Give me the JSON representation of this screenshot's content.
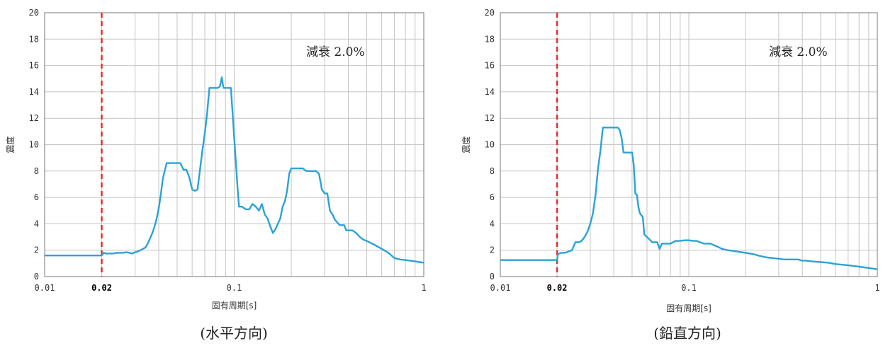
{
  "chart_data": [
    {
      "type": "line",
      "caption": "(水平方向)",
      "xlabel": "固有周期[s]",
      "ylabel": "震度",
      "annotation": "減衰 2.0%",
      "x_scale": "log",
      "xlim": [
        0.01,
        1
      ],
      "ylim": [
        0,
        20
      ],
      "x_ticks": [
        {
          "value": 0.01,
          "label": "0.01"
        },
        {
          "value": 0.02,
          "label": "0.02"
        },
        {
          "value": 0.1,
          "label": "0.1"
        },
        {
          "value": 1,
          "label": "1"
        }
      ],
      "y_ticks": [
        0,
        2,
        4,
        6,
        8,
        10,
        12,
        14,
        16,
        18,
        20
      ],
      "grid": true,
      "reference_line": {
        "x": 0.02,
        "color": "#e03030",
        "style": "dashed"
      },
      "series": [
        {
          "color": "#2aa3d8",
          "x": [
            0.01,
            0.012,
            0.015,
            0.018,
            0.02,
            0.0205,
            0.021,
            0.022,
            0.023,
            0.024,
            0.025,
            0.026,
            0.027,
            0.028,
            0.029,
            0.03,
            0.031,
            0.032,
            0.033,
            0.034,
            0.035,
            0.036,
            0.037,
            0.038,
            0.039,
            0.04,
            0.041,
            0.042,
            0.044,
            0.046,
            0.048,
            0.05,
            0.052,
            0.054,
            0.056,
            0.058,
            0.06,
            0.062,
            0.064,
            0.066,
            0.068,
            0.07,
            0.072,
            0.074,
            0.076,
            0.078,
            0.08,
            0.082,
            0.084,
            0.086,
            0.087,
            0.088,
            0.09,
            0.092,
            0.094,
            0.096,
            0.098,
            0.1,
            0.102,
            0.104,
            0.106,
            0.108,
            0.11,
            0.115,
            0.12,
            0.125,
            0.13,
            0.135,
            0.14,
            0.145,
            0.15,
            0.155,
            0.16,
            0.165,
            0.17,
            0.175,
            0.18,
            0.185,
            0.19,
            0.195,
            0.2,
            0.205,
            0.21,
            0.215,
            0.22,
            0.23,
            0.24,
            0.25,
            0.26,
            0.27,
            0.28,
            0.29,
            0.3,
            0.31,
            0.32,
            0.33,
            0.34,
            0.35,
            0.36,
            0.37,
            0.38,
            0.39,
            0.4,
            0.42,
            0.44,
            0.46,
            0.48,
            0.5,
            0.55,
            0.6,
            0.65,
            0.7,
            0.75,
            0.8,
            0.85,
            0.9,
            0.95,
            1.0
          ],
          "y": [
            1.6,
            1.6,
            1.6,
            1.6,
            1.6,
            1.8,
            1.75,
            1.75,
            1.75,
            1.8,
            1.8,
            1.8,
            1.85,
            1.8,
            1.75,
            1.85,
            1.9,
            2.0,
            2.1,
            2.2,
            2.5,
            2.9,
            3.3,
            3.8,
            4.4,
            5.2,
            6.2,
            7.4,
            8.6,
            8.6,
            8.6,
            8.6,
            8.6,
            8.1,
            8.1,
            7.5,
            6.6,
            6.5,
            6.6,
            8.1,
            9.6,
            10.9,
            12.4,
            14.3,
            14.3,
            14.3,
            14.3,
            14.3,
            14.4,
            15.1,
            14.6,
            14.3,
            14.3,
            14.3,
            14.3,
            14.3,
            12.4,
            10.5,
            8.7,
            6.8,
            5.3,
            5.3,
            5.3,
            5.1,
            5.1,
            5.5,
            5.3,
            5.0,
            5.5,
            4.7,
            4.4,
            3.8,
            3.3,
            3.6,
            4.0,
            4.4,
            5.3,
            5.7,
            6.5,
            7.8,
            8.2,
            8.2,
            8.2,
            8.2,
            8.2,
            8.2,
            8.0,
            8.0,
            8.0,
            8.0,
            7.8,
            6.6,
            6.3,
            6.3,
            5.0,
            4.7,
            4.3,
            4.1,
            3.9,
            3.9,
            3.9,
            3.5,
            3.5,
            3.5,
            3.3,
            3.0,
            2.8,
            2.7,
            2.4,
            2.1,
            1.8,
            1.4,
            1.3,
            1.25,
            1.2,
            1.15,
            1.1,
            1.05
          ]
        }
      ]
    },
    {
      "type": "line",
      "caption": "(鉛直方向)",
      "xlabel": "固有周期[s]",
      "ylabel": "震度",
      "annotation": "減衰 2.0%",
      "x_scale": "log",
      "xlim": [
        0.01,
        1
      ],
      "ylim": [
        0,
        20
      ],
      "x_ticks": [
        {
          "value": 0.01,
          "label": "0.01"
        },
        {
          "value": 0.02,
          "label": "0.02"
        },
        {
          "value": 0.1,
          "label": "0.1"
        },
        {
          "value": 1,
          "label": "1"
        }
      ],
      "y_ticks": [
        0,
        2,
        4,
        6,
        8,
        10,
        12,
        14,
        16,
        18,
        20
      ],
      "grid": true,
      "reference_line": {
        "x": 0.02,
        "color": "#e03030",
        "style": "dashed"
      },
      "series": [
        {
          "color": "#2aa3d8",
          "x": [
            0.01,
            0.012,
            0.015,
            0.018,
            0.02,
            0.0202,
            0.021,
            0.022,
            0.023,
            0.024,
            0.025,
            0.026,
            0.027,
            0.028,
            0.029,
            0.03,
            0.031,
            0.032,
            0.033,
            0.034,
            0.035,
            0.036,
            0.038,
            0.04,
            0.042,
            0.043,
            0.044,
            0.045,
            0.046,
            0.048,
            0.05,
            0.051,
            0.052,
            0.053,
            0.054,
            0.055,
            0.057,
            0.058,
            0.06,
            0.062,
            0.064,
            0.066,
            0.068,
            0.07,
            0.072,
            0.074,
            0.076,
            0.078,
            0.08,
            0.085,
            0.09,
            0.095,
            0.1,
            0.105,
            0.11,
            0.12,
            0.13,
            0.14,
            0.15,
            0.16,
            0.17,
            0.18,
            0.19,
            0.2,
            0.22,
            0.24,
            0.26,
            0.28,
            0.3,
            0.32,
            0.34,
            0.36,
            0.38,
            0.4,
            0.42,
            0.45,
            0.5,
            0.55,
            0.6,
            0.65,
            0.7,
            0.75,
            0.8,
            0.85,
            0.9,
            0.95,
            1.0
          ],
          "y": [
            1.25,
            1.25,
            1.25,
            1.25,
            1.25,
            1.7,
            1.8,
            1.8,
            1.9,
            2.0,
            2.6,
            2.6,
            2.7,
            3.0,
            3.4,
            4.0,
            4.8,
            6.2,
            8.2,
            9.6,
            11.3,
            11.3,
            11.3,
            11.3,
            11.3,
            11.1,
            10.5,
            9.4,
            9.4,
            9.4,
            9.4,
            8.5,
            6.3,
            6.2,
            5.3,
            4.8,
            4.5,
            3.2,
            3.0,
            2.8,
            2.6,
            2.6,
            2.6,
            2.1,
            2.5,
            2.5,
            2.5,
            2.5,
            2.5,
            2.7,
            2.7,
            2.75,
            2.75,
            2.7,
            2.7,
            2.5,
            2.5,
            2.3,
            2.1,
            2.0,
            1.95,
            1.9,
            1.85,
            1.8,
            1.7,
            1.55,
            1.45,
            1.4,
            1.35,
            1.3,
            1.3,
            1.3,
            1.3,
            1.2,
            1.2,
            1.15,
            1.1,
            1.05,
            0.95,
            0.9,
            0.85,
            0.8,
            0.75,
            0.7,
            0.65,
            0.6,
            0.55
          ]
        }
      ]
    }
  ]
}
